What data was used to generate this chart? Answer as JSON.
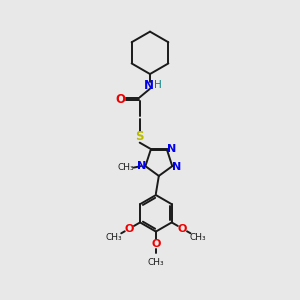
{
  "bg_color": "#e8e8e8",
  "bond_color": "#1a1a1a",
  "N_color": "#0000ee",
  "O_color": "#ee0000",
  "S_color": "#bbbb00",
  "H_color": "#008080",
  "line_width": 1.4,
  "figsize": [
    3.0,
    3.0
  ],
  "dpi": 100,
  "xlim": [
    0,
    10
  ],
  "ylim": [
    0,
    10
  ]
}
